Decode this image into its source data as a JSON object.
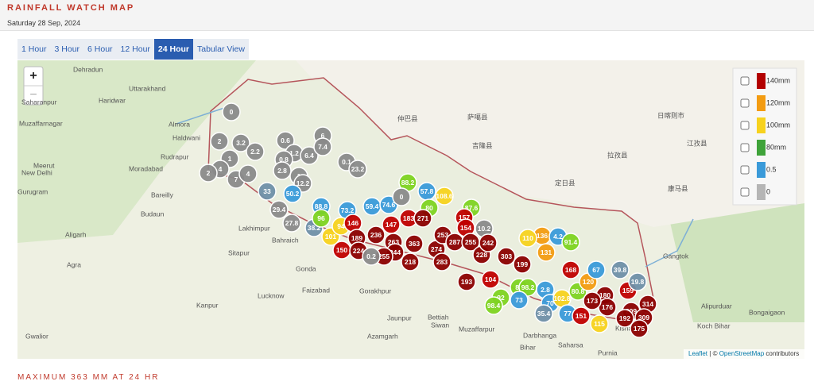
{
  "header": {
    "title": "RAINFALL WATCH MAP",
    "date": "Saturday 28 Sep, 2024"
  },
  "tabs": [
    "1 Hour",
    "3 Hour",
    "6 Hour",
    "12 Hour",
    "24 Hour",
    "Tabular View"
  ],
  "map": {
    "zoom_in": "+",
    "zoom_out": "−",
    "legend": [
      {
        "label": "140mm",
        "color": "#b30000"
      },
      {
        "label": "120mm",
        "color": "#f39c12"
      },
      {
        "label": "100mm",
        "color": "#f7d21e"
      },
      {
        "label": "80mm",
        "color": "#3fa33a"
      },
      {
        "label": "0.5",
        "color": "#3a9ad9"
      },
      {
        "label": "0",
        "color": "#b5b5b5"
      }
    ],
    "places": [
      "Dehradun",
      "Uttarakhand",
      "Haridwar",
      "Saharanpur",
      "Muzaffarnagar",
      "Almora",
      "Haldwani",
      "Meerut",
      "Moradabad",
      "Rudrapur",
      "New Delhi",
      "Gurugram",
      "Bareilly",
      "Budaun",
      "Aligarh",
      "Agra",
      "Lakhimpur",
      "Sitapur",
      "Lucknow",
      "Kanpur",
      "Bahraich",
      "Gonda",
      "Faizabad",
      "Gorakhpur",
      "Bettiah",
      "Siwan",
      "Muzaffarpur",
      "Darbhanga",
      "Saharsa",
      "Purnia",
      "Kishanganj",
      "Gangtok",
      "Alipurduar",
      "Bongaigaon",
      "Koch Bihar",
      "Gwalior",
      "Jaunpur",
      "Azamgarh",
      "仲巴县",
      "萨噶县",
      "吉隆县",
      "定日县",
      "日喀则市",
      "拉孜县",
      "江孜县",
      "康马县",
      "Bihar"
    ],
    "markers": [
      {
        "value": "0",
        "color": "#8a8a8a"
      },
      {
        "value": "2",
        "color": "#8a8a8a"
      },
      {
        "value": "3.2",
        "color": "#8a8a8a"
      },
      {
        "value": "2.2",
        "color": "#8a8a8a"
      },
      {
        "value": "0.6",
        "color": "#8a8a8a"
      },
      {
        "value": "1.2",
        "color": "#8a8a8a"
      },
      {
        "value": "6.4",
        "color": "#8a8a8a"
      },
      {
        "value": "6",
        "color": "#8a8a8a"
      },
      {
        "value": "7.4",
        "color": "#8a8a8a"
      },
      {
        "value": "1",
        "color": "#8a8a8a"
      },
      {
        "value": "4",
        "color": "#8a8a8a"
      },
      {
        "value": "2",
        "color": "#8a8a8a"
      },
      {
        "value": "7",
        "color": "#8a8a8a"
      },
      {
        "value": "4",
        "color": "#8a8a8a"
      },
      {
        "value": "0.8",
        "color": "#8a8a8a"
      },
      {
        "value": "2.8",
        "color": "#8a8a8a"
      },
      {
        "value": "1",
        "color": "#8a8a8a"
      },
      {
        "value": "12.2",
        "color": "#8a8a8a"
      },
      {
        "value": "50.2",
        "color": "#3a9ad9"
      },
      {
        "value": "33",
        "color": "#6f8fa8"
      },
      {
        "value": "29.4",
        "color": "#8a8a8a"
      },
      {
        "value": "27.8",
        "color": "#8a8a8a"
      },
      {
        "value": "38.2",
        "color": "#6f8fa8"
      },
      {
        "value": "0.1",
        "color": "#8a8a8a"
      },
      {
        "value": "23.2",
        "color": "#8a8a8a"
      },
      {
        "value": "88.8",
        "color": "#3a9ad9"
      },
      {
        "value": "96",
        "color": "#7ed321"
      },
      {
        "value": "73.2",
        "color": "#3a9ad9"
      },
      {
        "value": "59.4",
        "color": "#3a9ad9"
      },
      {
        "value": "74.6",
        "color": "#3a9ad9"
      },
      {
        "value": "88.2",
        "color": "#7ed321"
      },
      {
        "value": "57.8",
        "color": "#3a9ad9"
      },
      {
        "value": "108.6",
        "color": "#f7d21e"
      },
      {
        "value": "80",
        "color": "#7ed321"
      },
      {
        "value": "87.6",
        "color": "#7ed321"
      },
      {
        "value": "0",
        "color": "#8a8a8a"
      },
      {
        "value": "101",
        "color": "#f7d21e"
      },
      {
        "value": "94",
        "color": "#f7d21e"
      },
      {
        "value": "146",
        "color": "#c00000"
      },
      {
        "value": "189",
        "color": "#8b0000"
      },
      {
        "value": "150",
        "color": "#c00000"
      },
      {
        "value": "224",
        "color": "#8b0000"
      },
      {
        "value": "236",
        "color": "#8b0000"
      },
      {
        "value": "147",
        "color": "#c00000"
      },
      {
        "value": "263",
        "color": "#8b0000"
      },
      {
        "value": "183",
        "color": "#c00000"
      },
      {
        "value": "271",
        "color": "#8b0000"
      },
      {
        "value": "363",
        "color": "#8b0000"
      },
      {
        "value": "244",
        "color": "#8b0000"
      },
      {
        "value": "218",
        "color": "#8b0000"
      },
      {
        "value": "255",
        "color": "#8b0000"
      },
      {
        "value": "0.2",
        "color": "#8a8a8a"
      },
      {
        "value": "274",
        "color": "#8b0000"
      },
      {
        "value": "283",
        "color": "#8b0000"
      },
      {
        "value": "253",
        "color": "#8b0000"
      },
      {
        "value": "287",
        "color": "#8b0000"
      },
      {
        "value": "157",
        "color": "#c00000"
      },
      {
        "value": "154",
        "color": "#c00000"
      },
      {
        "value": "255",
        "color": "#8b0000"
      },
      {
        "value": "10.2",
        "color": "#8a8a8a"
      },
      {
        "value": "228",
        "color": "#8b0000"
      },
      {
        "value": "242",
        "color": "#8b0000"
      },
      {
        "value": "303",
        "color": "#8b0000"
      },
      {
        "value": "199",
        "color": "#8b0000"
      },
      {
        "value": "136",
        "color": "#f39c12"
      },
      {
        "value": "4.2",
        "color": "#3a9ad9"
      },
      {
        "value": "91.4",
        "color": "#7ed321"
      },
      {
        "value": "110",
        "color": "#f7d21e"
      },
      {
        "value": "131",
        "color": "#f39c12"
      },
      {
        "value": "84",
        "color": "#7ed321"
      },
      {
        "value": "98.2",
        "color": "#7ed321"
      },
      {
        "value": "92",
        "color": "#7ed321"
      },
      {
        "value": "98.4",
        "color": "#7ed321"
      },
      {
        "value": "73",
        "color": "#3a9ad9"
      },
      {
        "value": "2.8",
        "color": "#3a9ad9"
      },
      {
        "value": "70",
        "color": "#3a9ad9"
      },
      {
        "value": "35.4",
        "color": "#6f8fa8"
      },
      {
        "value": "102.8",
        "color": "#f7d21e"
      },
      {
        "value": "77",
        "color": "#3a9ad9"
      },
      {
        "value": "151",
        "color": "#c00000"
      },
      {
        "value": "80.8",
        "color": "#7ed321"
      },
      {
        "value": "120",
        "color": "#f39c12"
      },
      {
        "value": "168",
        "color": "#c00000"
      },
      {
        "value": "67",
        "color": "#3a9ad9"
      },
      {
        "value": "39.8",
        "color": "#6f8fa8"
      },
      {
        "value": "180",
        "color": "#8b0000"
      },
      {
        "value": "176",
        "color": "#8b0000"
      },
      {
        "value": "173",
        "color": "#8b0000"
      },
      {
        "value": "159",
        "color": "#c00000"
      },
      {
        "value": "19.8",
        "color": "#6f8fa8"
      },
      {
        "value": "314",
        "color": "#8b0000"
      },
      {
        "value": "209",
        "color": "#8b0000"
      },
      {
        "value": "309",
        "color": "#8b0000"
      },
      {
        "value": "192",
        "color": "#8b0000"
      },
      {
        "value": "175",
        "color": "#8b0000"
      },
      {
        "value": "115",
        "color": "#f7d21e"
      },
      {
        "value": "193",
        "color": "#8b0000"
      },
      {
        "value": "104",
        "color": "#c00000"
      }
    ],
    "attribution": {
      "leaflet": "Leaflet",
      "separator": "| ©",
      "osm": "OpenStreetMap",
      "rest": "contributors"
    }
  },
  "footer": "MAXIMUM 363 MM AT 24 HR"
}
